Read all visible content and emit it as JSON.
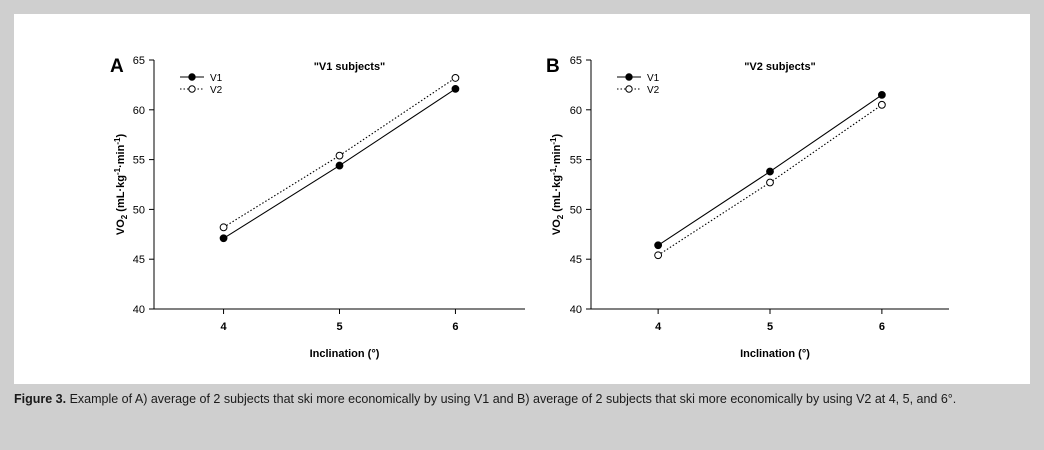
{
  "chart_data": [
    {
      "type": "line",
      "panel_letter": "A",
      "title": "\"V1 subjects\"",
      "xlabel": "Inclination (°)",
      "ylabel_main": "VO",
      "ylabel_sub": "2",
      "ylabel_units": " (mL·kg-1·min-1)",
      "x": [
        4,
        5,
        6
      ],
      "xlim": [
        3.4,
        6.6
      ],
      "ylim": [
        40,
        65
      ],
      "yticks": [
        40,
        45,
        50,
        55,
        60,
        65
      ],
      "xticks": [
        4,
        5,
        6
      ],
      "grid": false,
      "legend_position": "top-left",
      "series": [
        {
          "name": "V1",
          "values": [
            47.1,
            54.4,
            62.1
          ],
          "style": "solid",
          "marker": "filled-circle"
        },
        {
          "name": "V2",
          "values": [
            48.2,
            55.4,
            63.2
          ],
          "style": "dotted",
          "marker": "open-circle"
        }
      ]
    },
    {
      "type": "line",
      "panel_letter": "B",
      "title": "\"V2 subjects\"",
      "xlabel": "Inclination (°)",
      "ylabel_main": "VO",
      "ylabel_sub": "2",
      "ylabel_units": " (mL·kg-1·min-1)",
      "x": [
        4,
        5,
        6
      ],
      "xlim": [
        3.4,
        6.6
      ],
      "ylim": [
        40,
        65
      ],
      "yticks": [
        40,
        45,
        50,
        55,
        60,
        65
      ],
      "xticks": [
        4,
        5,
        6
      ],
      "grid": false,
      "legend_position": "top-left",
      "series": [
        {
          "name": "V1",
          "values": [
            46.4,
            53.8,
            61.5
          ],
          "style": "solid",
          "marker": "filled-circle"
        },
        {
          "name": "V2",
          "values": [
            45.4,
            52.7,
            60.5
          ],
          "style": "dotted",
          "marker": "open-circle"
        }
      ]
    }
  ],
  "caption": {
    "label": "Figure 3.",
    "text": " Example of A) average of 2 subjects that ski more economically by using V1 and B) average of 2 subjects that ski more economically by using V2 at 4, 5, and 6°."
  },
  "colors": {
    "page_background": "#cfcfcf",
    "panel_background": "#ffffff",
    "ink": "#000000"
  }
}
